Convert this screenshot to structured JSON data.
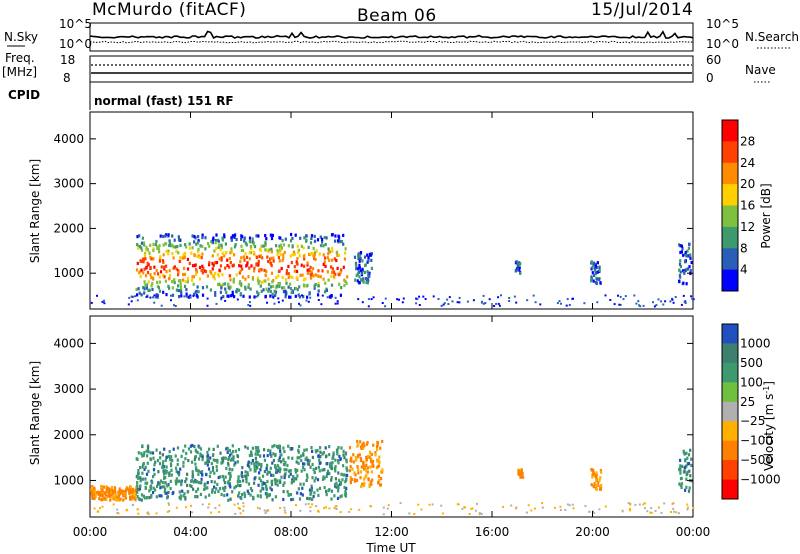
{
  "header": {
    "station": "McMurdo (fitACF)",
    "beam": "Beam 06",
    "date": "15/Jul/2014"
  },
  "top_panels": {
    "nsky_label": "N.Sky",
    "nsearch_label": "N.Search",
    "nsky_ticks": [
      "10^5",
      "10^0"
    ],
    "nsearch_ticks": [
      "10^5",
      "10^0"
    ],
    "freq_label_line1": "Freq.",
    "freq_label_line2": "[MHz]",
    "freq_ticks": [
      "18",
      "8"
    ],
    "nave_label": "Nave",
    "nave_ticks": [
      "60",
      "0"
    ],
    "cpid_label": "CPID",
    "cpid_text": "normal (fast) 151 RF"
  },
  "chart_data": [
    {
      "type": "heatmap",
      "name": "power",
      "ylabel": "Slant Range [km]",
      "xlabel": "",
      "yticks": [
        1000,
        2000,
        3000,
        4000
      ],
      "ylim": [
        200,
        4600
      ],
      "xlim": [
        0,
        24
      ],
      "colorbar": {
        "label": "Power [dB]",
        "ticks": [
          "28",
          "24",
          "20",
          "16",
          "12",
          "8",
          "4"
        ],
        "colors": [
          "#ff0000",
          "#ff4000",
          "#ff8c00",
          "#ffd000",
          "#80c040",
          "#3c9a6e",
          "#2a5fb8",
          "#0000ff"
        ]
      },
      "features": [
        {
          "t0": 1.8,
          "t1": 10.2,
          "r0": 500,
          "r1": 1900,
          "level": "high"
        },
        {
          "t0": 10.5,
          "t1": 11.2,
          "r0": 800,
          "r1": 1500,
          "level": "low"
        },
        {
          "t0": 16.9,
          "t1": 17.1,
          "r0": 1000,
          "r1": 1300,
          "level": "low"
        },
        {
          "t0": 19.9,
          "t1": 20.3,
          "r0": 800,
          "r1": 1300,
          "level": "low"
        },
        {
          "t0": 23.4,
          "t1": 23.9,
          "r0": 800,
          "r1": 1700,
          "level": "low"
        }
      ]
    },
    {
      "type": "heatmap",
      "name": "velocity",
      "ylabel": "Slant Range [km]",
      "xlabel": "Time UT",
      "xticks": [
        "00:00",
        "04:00",
        "08:00",
        "12:00",
        "16:00",
        "20:00",
        "00:00"
      ],
      "yticks": [
        1000,
        2000,
        3000,
        4000
      ],
      "ylim": [
        200,
        4600
      ],
      "xlim": [
        0,
        24
      ],
      "colorbar": {
        "label": "Velocity [m s",
        "label_exp": "-1",
        "label_close": "]",
        "ticks": [
          "1000",
          "500",
          "100",
          "25",
          "−25",
          "−100",
          "−500",
          "−1000"
        ],
        "colors": [
          "#2050c0",
          "#3c7f6e",
          "#3c9a6e",
          "#70c040",
          "#b0b0b0",
          "#ffb000",
          "#ff8000",
          "#ff4000",
          "#ff0000"
        ]
      },
      "features": [
        {
          "t0": 0.0,
          "t1": 1.8,
          "r0": 600,
          "r1": 900,
          "level": "neg"
        },
        {
          "t0": 1.8,
          "t1": 10.2,
          "r0": 600,
          "r1": 1800,
          "level": "pos"
        },
        {
          "t0": 10.3,
          "t1": 11.6,
          "r0": 900,
          "r1": 1900,
          "level": "neg"
        },
        {
          "t0": 17.0,
          "t1": 17.2,
          "r0": 1100,
          "r1": 1300,
          "level": "neg"
        },
        {
          "t0": 19.9,
          "t1": 20.3,
          "r0": 800,
          "r1": 1300,
          "level": "neg"
        },
        {
          "t0": 23.4,
          "t1": 23.9,
          "r0": 800,
          "r1": 1700,
          "level": "pos"
        }
      ]
    }
  ]
}
